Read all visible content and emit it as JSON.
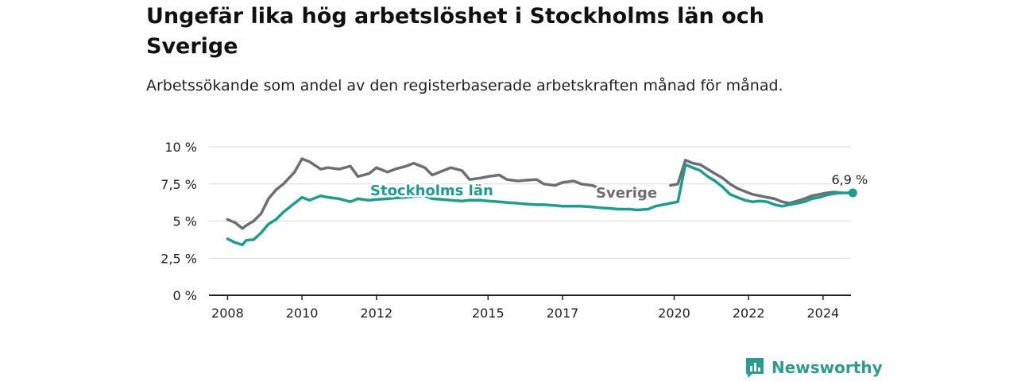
{
  "page": {
    "title": "Ungefär lika hög arbetslöshet i Stockholms län och Sverige",
    "subtitle": "Arbetssökande som andel av den registerbaserade arbetskraften månad för månad.",
    "brand": "Newsworthy"
  },
  "colors": {
    "stockholm": "#1a9e8f",
    "sverige": "#6e6e73",
    "grid": "#d9d9d9",
    "axis": "#222222",
    "brand": "#2a9d8f"
  },
  "chart_data": {
    "type": "line",
    "ylim": [
      0,
      10
    ],
    "xlim": [
      2008.0,
      2025.25
    ],
    "y_ticks": [
      {
        "value": 0,
        "label": "0 %"
      },
      {
        "value": 2.5,
        "label": "2,5 %"
      },
      {
        "value": 5,
        "label": "5 %"
      },
      {
        "value": 7.5,
        "label": "7,5 %"
      },
      {
        "value": 10,
        "label": "10 %"
      }
    ],
    "x_ticks": [
      {
        "value": 2008.5,
        "label": "2008"
      },
      {
        "value": 2010.5,
        "label": "2010"
      },
      {
        "value": 2012.5,
        "label": "2012"
      },
      {
        "value": 2015.5,
        "label": "2015"
      },
      {
        "value": 2017.5,
        "label": "2017"
      },
      {
        "value": 2020.5,
        "label": "2020"
      },
      {
        "value": 2022.5,
        "label": "2022"
      },
      {
        "value": 2024.5,
        "label": "2024"
      }
    ],
    "grid": true,
    "annotation": {
      "label": "6,9 %",
      "series": "Stockholms län",
      "x": 2025.3,
      "y": 6.9
    },
    "series": [
      {
        "name": "Stockholms län",
        "color": "#1a9e8f",
        "x": [
          2008.5,
          2008.7,
          2008.9,
          2009.0,
          2009.2,
          2009.4,
          2009.6,
          2009.8,
          2010.0,
          2010.2,
          2010.5,
          2010.7,
          2011.0,
          2011.2,
          2011.5,
          2011.8,
          2012.0,
          2012.3,
          2012.5,
          2012.8,
          2013.0,
          2013.3,
          2013.5,
          2013.8,
          2014.0,
          2014.3,
          2014.5,
          2014.8,
          2015.0,
          2015.3,
          2015.5,
          2015.8,
          2016.0,
          2016.3,
          2016.5,
          2016.8,
          2017.0,
          2017.3,
          2017.5,
          2017.8,
          2018.0,
          2018.3,
          2018.5,
          2018.8,
          2019.0,
          2019.3,
          2019.5,
          2019.8,
          2020.0,
          2020.2,
          2020.4,
          2020.6,
          2020.8,
          2021.0,
          2021.2,
          2021.4,
          2021.6,
          2021.8,
          2022.0,
          2022.2,
          2022.4,
          2022.6,
          2022.8,
          2023.0,
          2023.2,
          2023.4,
          2023.6,
          2023.8,
          2024.0,
          2024.2,
          2024.4,
          2024.6,
          2024.8,
          2025.0,
          2025.3
        ],
        "values": [
          3.8,
          3.55,
          3.4,
          3.7,
          3.75,
          4.2,
          4.8,
          5.1,
          5.6,
          6.0,
          6.6,
          6.4,
          6.7,
          6.6,
          6.5,
          6.3,
          6.5,
          6.4,
          6.45,
          6.5,
          6.55,
          6.6,
          6.65,
          6.7,
          6.5,
          6.45,
          6.4,
          6.35,
          6.4,
          6.4,
          6.35,
          6.3,
          6.25,
          6.2,
          6.15,
          6.1,
          6.1,
          6.05,
          6.0,
          6.0,
          6.0,
          5.95,
          5.9,
          5.85,
          5.8,
          5.8,
          5.75,
          5.8,
          6.0,
          6.1,
          6.2,
          6.3,
          8.8,
          8.6,
          8.4,
          8.0,
          7.7,
          7.3,
          6.8,
          6.6,
          6.4,
          6.3,
          6.35,
          6.3,
          6.1,
          6.0,
          6.1,
          6.2,
          6.3,
          6.5,
          6.6,
          6.75,
          6.85,
          6.9,
          6.9
        ]
      },
      {
        "name": "Sverige",
        "color": "#6e6e73",
        "x": [
          2008.5,
          2008.7,
          2008.9,
          2009.0,
          2009.2,
          2009.4,
          2009.6,
          2009.8,
          2010.0,
          2010.3,
          2010.5,
          2010.7,
          2011.0,
          2011.2,
          2011.5,
          2011.8,
          2012.0,
          2012.3,
          2012.5,
          2012.8,
          2013.0,
          2013.3,
          2013.5,
          2013.8,
          2014.0,
          2014.3,
          2014.5,
          2014.8,
          2015.0,
          2015.3,
          2015.5,
          2015.8,
          2016.0,
          2016.3,
          2016.5,
          2016.8,
          2017.0,
          2017.3,
          2017.5,
          2017.8,
          2018.0,
          2018.3,
          2018.5,
          2020.4,
          2020.6,
          2020.8,
          2021.0,
          2021.2,
          2021.4,
          2021.6,
          2021.8,
          2022.0,
          2022.2,
          2022.4,
          2022.6,
          2022.8,
          2023.0,
          2023.2,
          2023.4,
          2023.6,
          2023.8,
          2024.0,
          2024.2,
          2024.4,
          2024.6,
          2024.8,
          2025.0
        ],
        "values": [
          5.1,
          4.9,
          4.5,
          4.7,
          5.0,
          5.5,
          6.5,
          7.1,
          7.5,
          8.3,
          9.2,
          9.0,
          8.5,
          8.6,
          8.5,
          8.7,
          8.0,
          8.2,
          8.6,
          8.3,
          8.5,
          8.7,
          8.9,
          8.6,
          8.1,
          8.4,
          8.6,
          8.4,
          7.8,
          7.9,
          8.0,
          8.1,
          7.8,
          7.7,
          7.75,
          7.8,
          7.5,
          7.4,
          7.6,
          7.7,
          7.5,
          7.4,
          7.2,
          7.4,
          7.5,
          9.1,
          8.9,
          8.8,
          8.5,
          8.2,
          7.9,
          7.5,
          7.2,
          7.0,
          6.8,
          6.7,
          6.6,
          6.5,
          6.3,
          6.2,
          6.35,
          6.5,
          6.7,
          6.8,
          6.9,
          6.95,
          6.9
        ]
      }
    ]
  }
}
